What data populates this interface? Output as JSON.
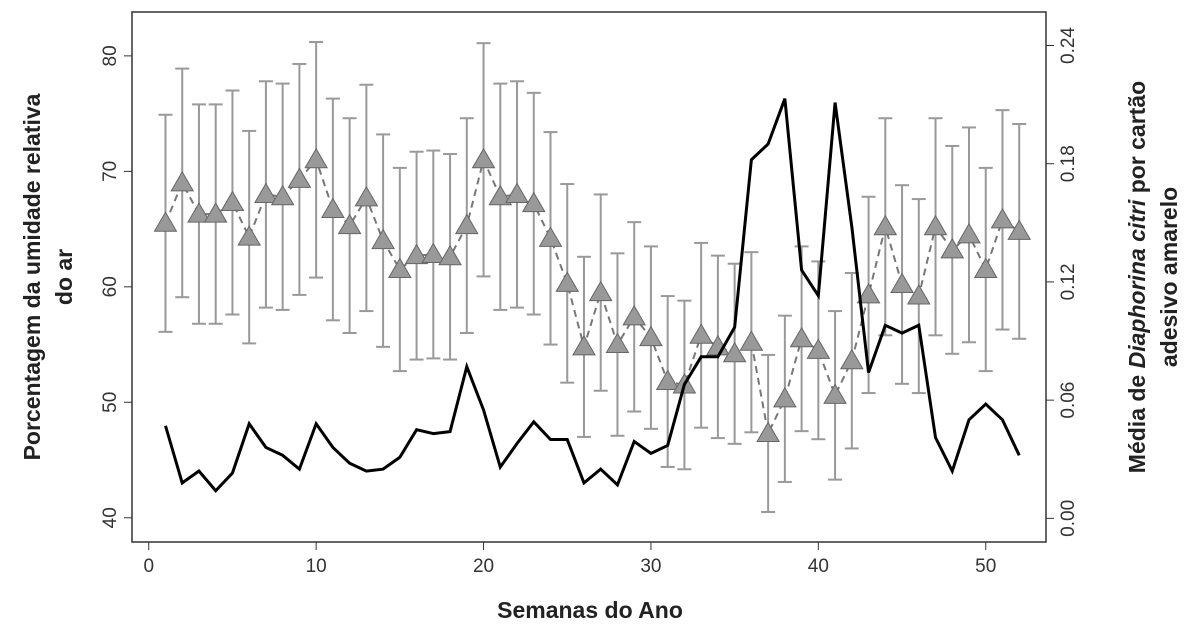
{
  "chart_data": {
    "type": "line",
    "xlabel": "Semanas do Ano",
    "ylabel": [
      "Porcentagem da umidade relativa",
      "do ar"
    ],
    "y2label": {
      "line1": [
        "Média de ",
        "Diaphorina citri",
        " por cartão"
      ],
      "line2": "adesivo amarelo"
    },
    "x": [
      1,
      2,
      3,
      4,
      5,
      6,
      7,
      8,
      9,
      10,
      11,
      12,
      13,
      14,
      15,
      16,
      17,
      18,
      19,
      20,
      21,
      22,
      23,
      24,
      25,
      26,
      27,
      28,
      29,
      30,
      31,
      32,
      33,
      34,
      35,
      36,
      37,
      38,
      39,
      40,
      41,
      42,
      43,
      44,
      45,
      46,
      47,
      48,
      49,
      50,
      51,
      52
    ],
    "xlim": [
      -1,
      53.6
    ],
    "xticks": [
      0,
      10,
      20,
      30,
      40,
      50
    ],
    "ylim": [
      37.9,
      83.8
    ],
    "yticks": [
      40,
      50,
      60,
      70,
      80
    ],
    "y2lim": [
      -0.012,
      0.257
    ],
    "y2ticks": [
      {
        "value": 0,
        "label": "0.00"
      },
      {
        "value": 0.06,
        "label": "0.06"
      },
      {
        "value": 0.12,
        "label": "0.12"
      },
      {
        "value": 0.18,
        "label": "0.18"
      },
      {
        "value": 0.24,
        "label": "0.24"
      }
    ],
    "series": [
      {
        "color": "#999999",
        "marker": "triangle",
        "dashed": true,
        "values": [
          65.5,
          69,
          66.3,
          66.3,
          67.3,
          64.3,
          68,
          67.8,
          69.3,
          71,
          66.7,
          65.3,
          67.7,
          64,
          61.5,
          62.7,
          62.8,
          62.6,
          65.3,
          71,
          67.8,
          68,
          67.2,
          64.2,
          60.3,
          54.8,
          59.5,
          55,
          57.4,
          55.6,
          51.8,
          51.5,
          55.8,
          54.8,
          54.2,
          55.2,
          47.3,
          50.3,
          55.5,
          54.5,
          50.6,
          53.6,
          59.3,
          65.2,
          60.2,
          59.2,
          65.2,
          63.2,
          64.5,
          61.5,
          65.8,
          64.8
        ],
        "errors": [
          9.4,
          9.9,
          9.5,
          9.5,
          9.7,
          9.2,
          9.8,
          9.8,
          10,
          10.2,
          9.6,
          9.3,
          9.8,
          9.2,
          8.8,
          9,
          9,
          8.9,
          9.3,
          10.1,
          9.8,
          9.8,
          9.6,
          9.2,
          8.6,
          7.8,
          8.5,
          7.9,
          8.2,
          7.9,
          7.4,
          7.3,
          8,
          7.9,
          7.8,
          7.8,
          6.8,
          7.2,
          8,
          7.7,
          7.3,
          7.6,
          8.5,
          9.4,
          8.6,
          8.4,
          9.4,
          9,
          9.3,
          8.8,
          9.5,
          9.3
        ]
      },
      {
        "color": "#000000",
        "axis": "y2",
        "values": [
          0.047,
          0.018,
          0.024,
          0.014,
          0.023,
          0.048,
          0.036,
          0.032,
          0.025,
          0.048,
          0.036,
          0.028,
          0.024,
          0.025,
          0.031,
          0.045,
          0.043,
          0.044,
          0.077,
          0.055,
          0.026,
          0.038,
          0.049,
          0.04,
          0.04,
          0.018,
          0.025,
          0.017,
          0.039,
          0.033,
          0.037,
          0.068,
          0.082,
          0.082,
          0.097,
          0.182,
          0.19,
          0.213,
          0.126,
          0.113,
          0.211,
          0.148,
          0.074,
          0.098,
          0.094,
          0.098,
          0.041,
          0.024,
          0.05,
          0.058,
          0.05,
          0.032
        ]
      }
    ]
  }
}
